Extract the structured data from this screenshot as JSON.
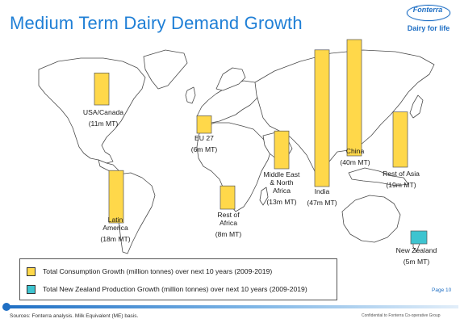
{
  "title": "Medium Term Dairy Demand Growth",
  "logo": {
    "name": "Fonterra",
    "tagline": "Dairy for life"
  },
  "colors": {
    "consumption": "#ffd84a",
    "nz_production": "#3ec4d0",
    "bar_stroke": "#555555",
    "land": "#ffffff",
    "land_stroke": "#4a4a4a",
    "accent": "#1f7fd6"
  },
  "chart_data": {
    "type": "bar",
    "unit": "million tonnes",
    "series": [
      {
        "name": "Total Consumption Growth (million tonnes) over next 10 years (2009-2019)",
        "color": "#ffd84a"
      },
      {
        "name": "Total New Zealand Production Growth (million tonnes) over next 10 years (2009-2019)",
        "color": "#3ec4d0"
      }
    ],
    "regions": [
      {
        "name": "USA/Canada",
        "value_label": "(11m MT)",
        "value": 11,
        "series": 0
      },
      {
        "name": "EU 27",
        "value_label": "(6m MT)",
        "value": 6,
        "series": 0
      },
      {
        "name": "Middle East & North Africa",
        "value_label": "(13m MT)",
        "value": 13,
        "series": 0
      },
      {
        "name": "India",
        "value_label": "(47m MT)",
        "value": 47,
        "series": 0
      },
      {
        "name": "China",
        "value_label": "(40m MT)",
        "value": 40,
        "series": 0
      },
      {
        "name": "Rest of Asia",
        "value_label": "(19m MT)",
        "value": 19,
        "series": 0
      },
      {
        "name": "Latin America",
        "value_label": "(18m MT)",
        "value": 18,
        "series": 0
      },
      {
        "name": "Rest of Africa",
        "value_label": "(8m MT)",
        "value": 8,
        "series": 0
      },
      {
        "name": "New Zealand",
        "value_label": "(5m MT)",
        "value": 5,
        "series": 1
      }
    ]
  },
  "legend": {
    "consumption": "Total Consumption Growth (million tonnes) over next 10 years (2009-2019)",
    "nz_production": "Total New Zealand Production Growth (million tonnes) over next 10 years (2009-2019)"
  },
  "page_number": "Page 10",
  "sources": "Sources: Fonterra analysis. Milk Equivalent (ME) basis.",
  "confidential": "Confidential to Fonterra Co-operative Group"
}
